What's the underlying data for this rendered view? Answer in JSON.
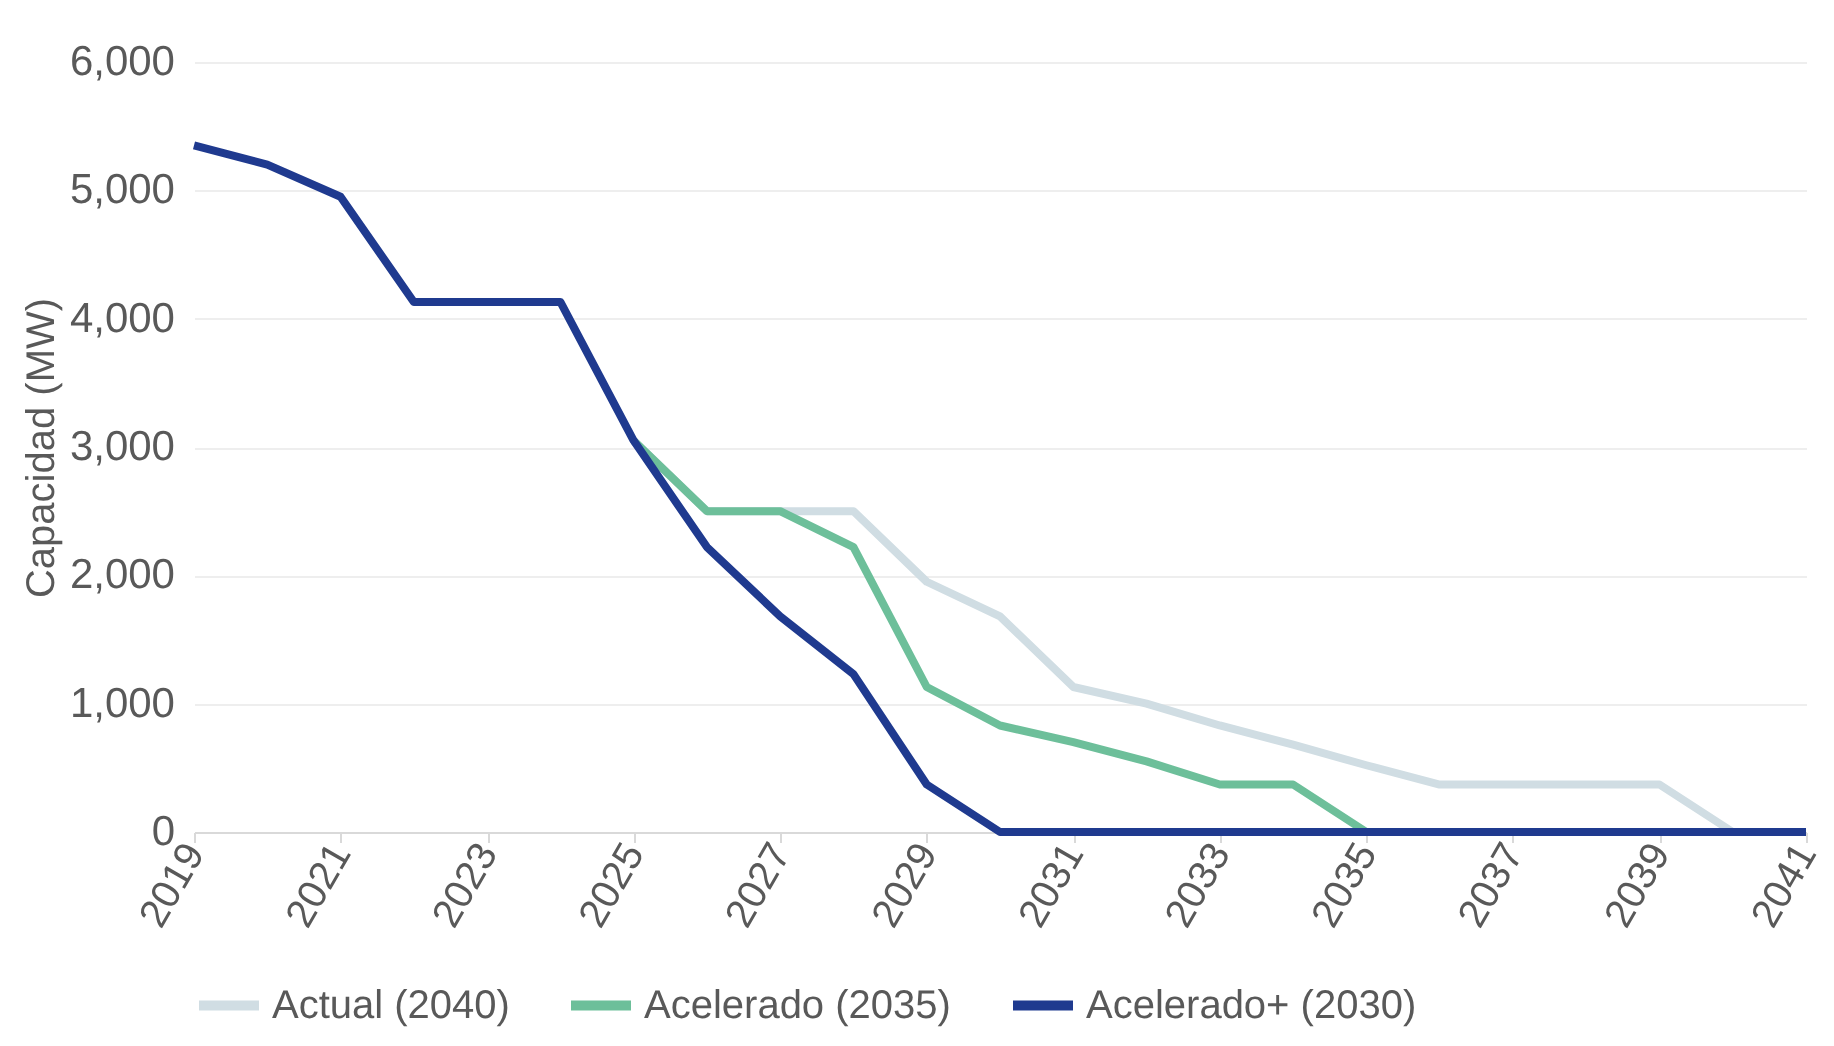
{
  "chart_data": {
    "type": "line",
    "ylabel": "Capacidad (MW)",
    "x": [
      2019,
      2020,
      2021,
      2022,
      2023,
      2024,
      2025,
      2026,
      2027,
      2028,
      2029,
      2030,
      2031,
      2032,
      2033,
      2034,
      2035,
      2036,
      2037,
      2038,
      2039,
      2040,
      2041
    ],
    "series": [
      {
        "name": "Actual (2040)",
        "color": "#d0dde3",
        "values": [
          null,
          null,
          null,
          null,
          null,
          null,
          3050,
          2500,
          2500,
          2500,
          1950,
          1680,
          1130,
          1000,
          830,
          680,
          520,
          370,
          370,
          370,
          370,
          0,
          null
        ]
      },
      {
        "name": "Acelerado (2035)",
        "color": "#6dbf9a",
        "values": [
          null,
          null,
          null,
          null,
          null,
          null,
          3050,
          2500,
          2500,
          2220,
          1130,
          830,
          700,
          550,
          370,
          370,
          0,
          null,
          null,
          null,
          null,
          null,
          null
        ]
      },
      {
        "name": "Acelerado+ (2030)",
        "color": "#1f3a8f",
        "values": [
          5350,
          5200,
          4950,
          4130,
          4130,
          4130,
          3050,
          2220,
          1680,
          1230,
          370,
          0,
          0,
          0,
          0,
          0,
          0,
          0,
          0,
          0,
          0,
          0,
          0
        ]
      }
    ],
    "xlim": [
      2019,
      2041
    ],
    "xticks": [
      2019,
      2021,
      2023,
      2025,
      2027,
      2029,
      2031,
      2033,
      2035,
      2037,
      2039,
      2041
    ],
    "ylim": [
      0,
      6000
    ],
    "yticks": [
      0,
      {
        "value": 1000,
        "label": "1,000"
      },
      {
        "value": 2000,
        "label": "2,000"
      },
      {
        "value": 3000,
        "label": "3,000"
      },
      {
        "value": 4000,
        "label": "4,000"
      },
      {
        "value": 5000,
        "label": "5,000"
      },
      {
        "value": 6000,
        "label": "6,000"
      }
    ],
    "grid": "y",
    "legend": "bottom",
    "marker": "none",
    "line_style": "solid"
  }
}
